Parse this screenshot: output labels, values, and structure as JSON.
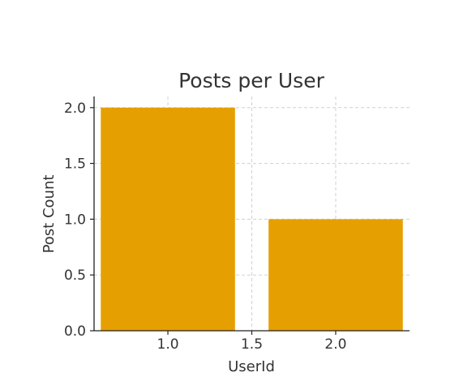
{
  "chart_data": {
    "type": "bar",
    "title": "Posts per User",
    "xlabel": "UserId",
    "ylabel": "Post Count",
    "x": [
      1.0,
      2.0
    ],
    "values": [
      2,
      1
    ],
    "bar_width": 0.8,
    "xlim": [
      0.56,
      2.44
    ],
    "ylim": [
      0,
      2.1
    ],
    "xticks": [
      1.0,
      1.5,
      2.0
    ],
    "xtick_labels": [
      "1.0",
      "1.5",
      "2.0"
    ],
    "yticks": [
      0.0,
      0.5,
      1.0,
      1.5,
      2.0
    ],
    "ytick_labels": [
      "0.0",
      "0.5",
      "1.0",
      "1.5",
      "2.0"
    ],
    "grid": true,
    "bar_color": "#E69F00"
  }
}
